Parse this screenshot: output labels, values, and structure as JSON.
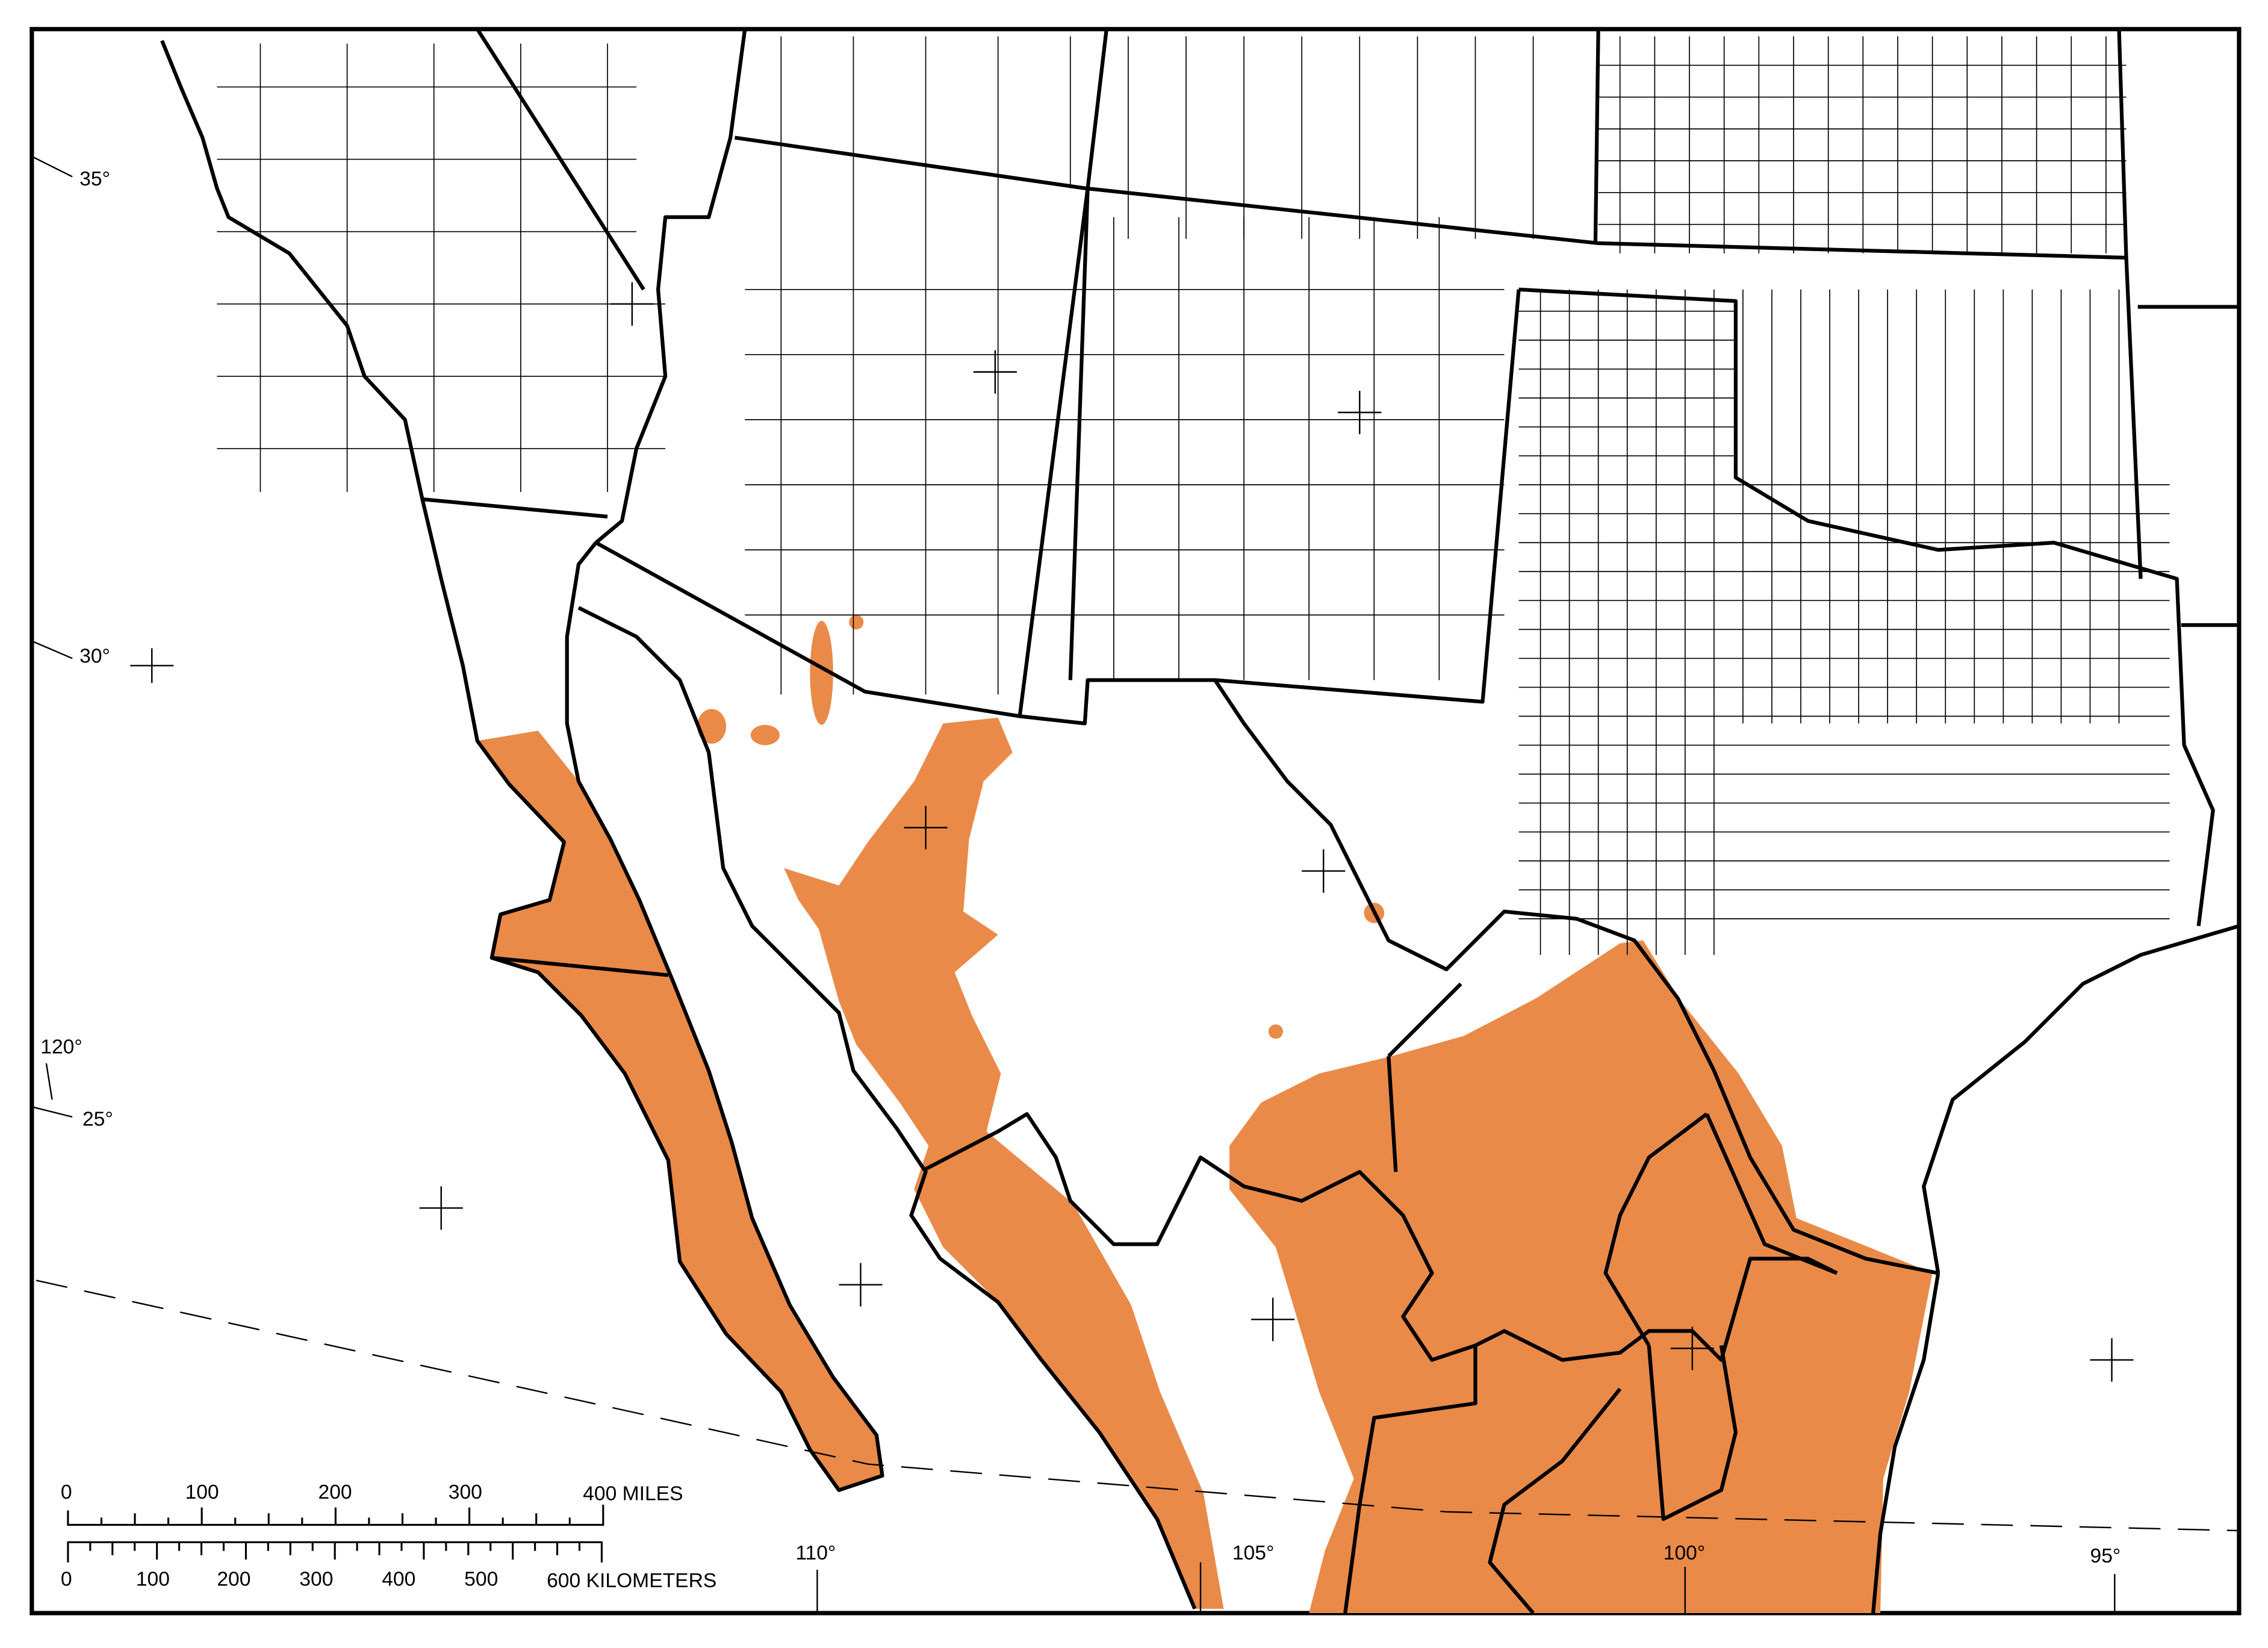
{
  "map": {
    "range_color": "#EA8A48",
    "latitude_labels": [
      "35°",
      "30°",
      "25°"
    ],
    "longitude_labels": [
      "120°",
      "110°",
      "105°",
      "100°",
      "95°"
    ],
    "scale_bar": {
      "miles": {
        "ticks": [
          "0",
          "100",
          "200",
          "300"
        ],
        "end_label": "400 MILES"
      },
      "kilometers": {
        "ticks": [
          "0",
          "100",
          "200",
          "300",
          "400",
          "500"
        ],
        "end_label": "600 KILOMETERS"
      }
    }
  }
}
